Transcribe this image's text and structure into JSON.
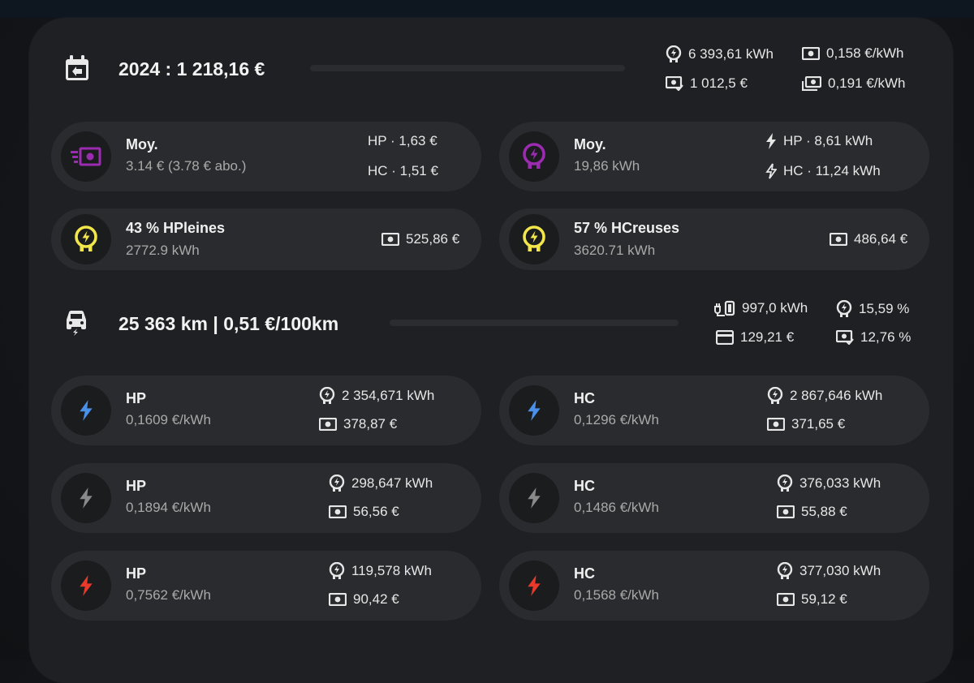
{
  "summary": {
    "title": "2024 : 1 218,16 €",
    "energy": "6 393,61 kWh",
    "price_avg": "0,158 €/kWh",
    "cost": "1 012,5 €",
    "price_total": "0,191 €/kWh"
  },
  "avg_cost": {
    "title": "Moy.",
    "subtitle": "3.14 € (3.78 € abo.)",
    "hp": "HP · 1,63 €",
    "hc": "HC · 1,51 €"
  },
  "avg_energy": {
    "title": "Moy.",
    "subtitle": "19,86 kWh",
    "hp": "HP · 8,61 kWh",
    "hc": "HC · 11,24 kWh"
  },
  "hp_share": {
    "title": "43 % HPleines",
    "subtitle": "2772.9 kWh",
    "cost": "525,86 €"
  },
  "hc_share": {
    "title": "57 % HCreuses",
    "subtitle": "3620.71 kWh",
    "cost": "486,64 €"
  },
  "ev": {
    "title": "25 363 km | 0,51 €/100km",
    "charged": "997,0 kWh",
    "pct_energy": "15,59 %",
    "cost": "129,21 €",
    "pct_cost": "12,76 %"
  },
  "tariffs": [
    {
      "label": "HP",
      "price": "0,1609 €/kWh",
      "energy": "2 354,671 kWh",
      "cost": "378,87 €"
    },
    {
      "label": "HC",
      "price": "0,1296 €/kWh",
      "energy": "2 867,646 kWh",
      "cost": "371,65 €"
    },
    {
      "label": "HP",
      "price": "0,1894 €/kWh",
      "energy": "298,647 kWh",
      "cost": "56,56 €"
    },
    {
      "label": "HC",
      "price": "0,1486 €/kWh",
      "energy": "376,033 kWh",
      "cost": "55,88 €"
    },
    {
      "label": "HP",
      "price": "0,7562 €/kWh",
      "energy": "119,578 kWh",
      "cost": "90,42 €"
    },
    {
      "label": "HC",
      "price": "0,1568 €/kWh",
      "energy": "377,030 kWh",
      "cost": "59,12 €"
    }
  ],
  "colors": {
    "blue_day": "#4a8fe8",
    "white_day": "#8a8a8a",
    "red_day": "#e8392b",
    "purple": "#9b2bb0",
    "yellow": "#f2e64a"
  },
  "icons": [
    "calendar-import-icon",
    "meter-icon",
    "cash-icon",
    "cash-check-icon",
    "cash-multiple-icon",
    "cash-fast-icon",
    "flash-icon",
    "flash-outline-icon",
    "car-electric-icon",
    "ev-plug-icon",
    "credit-card-icon"
  ]
}
